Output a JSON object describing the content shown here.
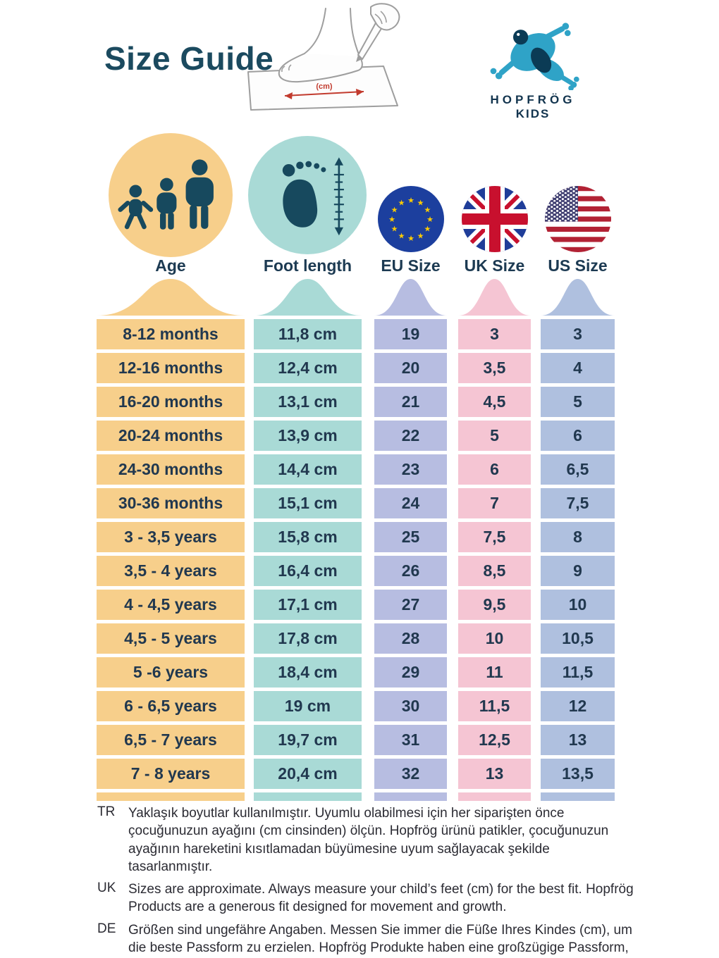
{
  "title": "Size Guide",
  "logo": {
    "brand_top": "HOPFRÖG",
    "brand_bottom": "KIDS"
  },
  "illustration": {
    "unit_label": "(cm)"
  },
  "colors": {
    "title": "#1B4A5F",
    "table_text": "#21384F",
    "note_text": "#2B2B33",
    "icon_dark": "#17495E",
    "frog_blue": "#2FA3C7",
    "frog_dark": "#0B3B55"
  },
  "columns": [
    {
      "key": "age",
      "label": "Age",
      "color": "#F7CF8B",
      "icon": "family-icon"
    },
    {
      "key": "foot",
      "label": "Foot length",
      "color": "#A9DAD6",
      "icon": "foot-ruler-icon"
    },
    {
      "key": "eu",
      "label": "EU Size",
      "color": "#B7BDE1",
      "icon": "eu-flag-icon"
    },
    {
      "key": "uk",
      "label": "UK Size",
      "color": "#F5C5D3",
      "icon": "uk-flag-icon"
    },
    {
      "key": "us",
      "label": "US Size",
      "color": "#AFC0DF",
      "icon": "us-flag-icon"
    }
  ],
  "rows": [
    {
      "age": "8-12 months",
      "foot": "11,8 cm",
      "eu": "19",
      "uk": "3",
      "us": "3"
    },
    {
      "age": "12-16 months",
      "foot": "12,4 cm",
      "eu": "20",
      "uk": "3,5",
      "us": "4"
    },
    {
      "age": "16-20 months",
      "foot": "13,1 cm",
      "eu": "21",
      "uk": "4,5",
      "us": "5"
    },
    {
      "age": "20-24 months",
      "foot": "13,9 cm",
      "eu": "22",
      "uk": "5",
      "us": "6"
    },
    {
      "age": "24-30 months",
      "foot": "14,4 cm",
      "eu": "23",
      "uk": "6",
      "us": "6,5"
    },
    {
      "age": "30-36 months",
      "foot": "15,1 cm",
      "eu": "24",
      "uk": "7",
      "us": "7,5"
    },
    {
      "age": "3 - 3,5 years",
      "foot": "15,8 cm",
      "eu": "25",
      "uk": "7,5",
      "us": "8"
    },
    {
      "age": "3,5 - 4 years",
      "foot": "16,4 cm",
      "eu": "26",
      "uk": "8,5",
      "us": "9"
    },
    {
      "age": "4 - 4,5 years",
      "foot": "17,1 cm",
      "eu": "27",
      "uk": "9,5",
      "us": "10"
    },
    {
      "age": "4,5 - 5 years",
      "foot": "17,8 cm",
      "eu": "28",
      "uk": "10",
      "us": "10,5"
    },
    {
      "age": "5 -6 years",
      "foot": "18,4 cm",
      "eu": "29",
      "uk": "11",
      "us": "11,5"
    },
    {
      "age": "6 - 6,5 years",
      "foot": "19 cm",
      "eu": "30",
      "uk": "11,5",
      "us": "12"
    },
    {
      "age": "6,5 - 7 years",
      "foot": "19,7 cm",
      "eu": "31",
      "uk": "12,5",
      "us": "13"
    },
    {
      "age": "7 - 8 years",
      "foot": "20,4 cm",
      "eu": "32",
      "uk": "13",
      "us": "13,5"
    }
  ],
  "notes": [
    {
      "label": "TR",
      "text": "Yaklaşık boyutlar kullanılmıştır. Uyumlu olabilmesi için her siparişten önce çocuğunuzun ayağını (cm cinsinden) ölçün. Hopfrög ürünü patikler, çocuğunuzun ayağının hareketini kısıtlamadan büyümesine uyum sağlayacak şekilde tasarlanmıştır."
    },
    {
      "label": "UK",
      "text": "Sizes are approximate. Always measure your child’s feet (cm) for the best fit. Hopfrög Products are a generous fit designed for movement and growth."
    },
    {
      "label": "DE",
      "text": "Größen sind ungefähre Angaben. Messen Sie immer die Füße Ihres Kindes (cm), um die beste Passform zu erzielen. Hopfrög Produkte haben eine großzügige Passform, die auf Bewegung und Wachstum ausgelegt ist."
    }
  ],
  "chart_data": {
    "type": "table",
    "title": "Size Guide",
    "columns": [
      "Age",
      "Foot length",
      "EU Size",
      "UK Size",
      "US Size"
    ],
    "rows": [
      [
        "8-12 months",
        "11,8 cm",
        "19",
        "3",
        "3"
      ],
      [
        "12-16 months",
        "12,4 cm",
        "20",
        "3,5",
        "4"
      ],
      [
        "16-20 months",
        "13,1 cm",
        "21",
        "4,5",
        "5"
      ],
      [
        "20-24 months",
        "13,9 cm",
        "22",
        "5",
        "6"
      ],
      [
        "24-30 months",
        "14,4 cm",
        "23",
        "6",
        "6,5"
      ],
      [
        "30-36 months",
        "15,1 cm",
        "24",
        "7",
        "7,5"
      ],
      [
        "3 - 3,5 years",
        "15,8 cm",
        "25",
        "7,5",
        "8"
      ],
      [
        "3,5 - 4 years",
        "16,4 cm",
        "26",
        "8,5",
        "9"
      ],
      [
        "4 - 4,5 years",
        "17,1 cm",
        "27",
        "9,5",
        "10"
      ],
      [
        "4,5 - 5 years",
        "17,8 cm",
        "28",
        "10",
        "10,5"
      ],
      [
        "5 -6 years",
        "18,4 cm",
        "29",
        "11",
        "11,5"
      ],
      [
        "6 - 6,5 years",
        "19 cm",
        "30",
        "11,5",
        "12"
      ],
      [
        "6,5 - 7 years",
        "19,7 cm",
        "31",
        "12,5",
        "13"
      ],
      [
        "7 - 8 years",
        "20,4 cm",
        "32",
        "13",
        "13,5"
      ]
    ]
  }
}
